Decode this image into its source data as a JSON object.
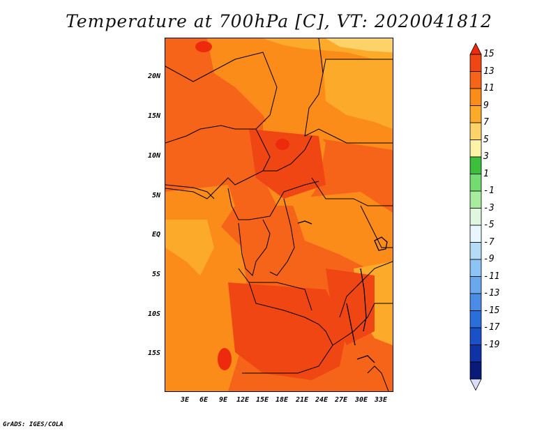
{
  "title": "Temperature at 700hPa [C], VT: 2020041812",
  "credit": "GrADS: IGES/COLA",
  "map": {
    "field": "Temperature at 700hPa",
    "units": "C",
    "valid_time": "2020041812",
    "region": "Central Africa",
    "lat_ticks": [
      "20N",
      "15N",
      "10N",
      "5N",
      "EQ",
      "5S",
      "10S",
      "15S"
    ],
    "lon_ticks": [
      "3E",
      "6E",
      "9E",
      "12E",
      "15E",
      "18E",
      "21E",
      "24E",
      "27E",
      "30E",
      "33E"
    ]
  },
  "colorbar": {
    "labels": [
      "15",
      "13",
      "11",
      "9",
      "7",
      "5",
      "3",
      "1",
      "-1",
      "-3",
      "-5",
      "-7",
      "-9",
      "-11",
      "-13",
      "-15",
      "-17",
      "-19"
    ],
    "colors": [
      "#ee2a0c",
      "#f04614",
      "#f6641a",
      "#fb8c1a",
      "#fbaa2a",
      "#fdd268",
      "#fff3a8",
      "#3cbf3a",
      "#73dc70",
      "#a8eca0",
      "#dff7e0",
      "#e8f6ff",
      "#b4dcf8",
      "#8ec4f4",
      "#6aa8ee",
      "#4a8ce6",
      "#2a6edc",
      "#1a50c8",
      "#0f32a6",
      "#0a1a78",
      "#dcdcf6"
    ]
  }
}
